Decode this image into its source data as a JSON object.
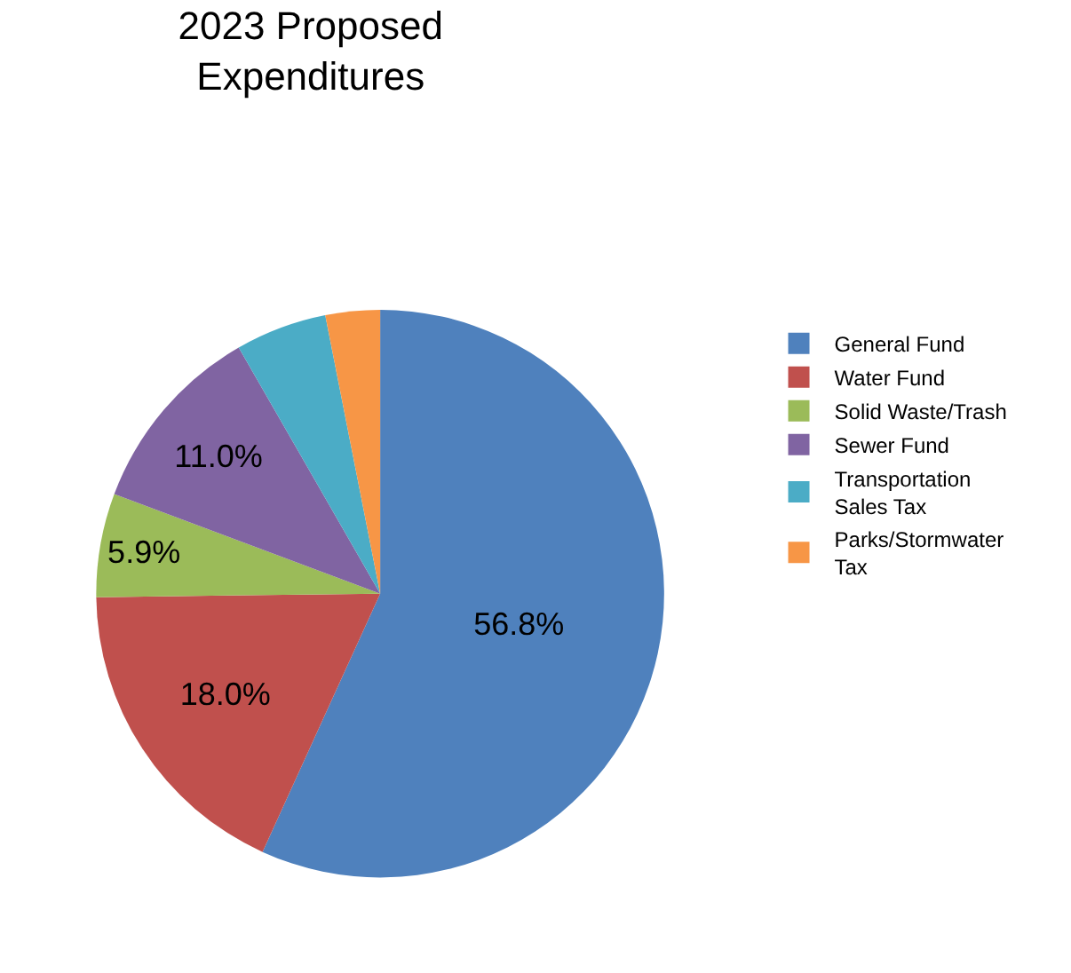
{
  "chart_data": {
    "type": "pie",
    "title": "2023 Proposed Expenditures",
    "categories": [
      "General Fund",
      "Water Fund",
      "Solid Waste/Trash",
      "Sewer Fund",
      "Transportation Sales Tax",
      "Parks/Stormwater Tax"
    ],
    "values": [
      56.8,
      18.0,
      5.9,
      11.0,
      5.2,
      3.1
    ],
    "colors": [
      "#4f81bd",
      "#c0504d",
      "#9bbb59",
      "#8064a2",
      "#4bacc6",
      "#f79646"
    ],
    "value_labels": [
      "56.8%",
      "18.0%",
      "5.9%",
      "11.0%",
      null,
      null
    ],
    "legend": "right"
  }
}
